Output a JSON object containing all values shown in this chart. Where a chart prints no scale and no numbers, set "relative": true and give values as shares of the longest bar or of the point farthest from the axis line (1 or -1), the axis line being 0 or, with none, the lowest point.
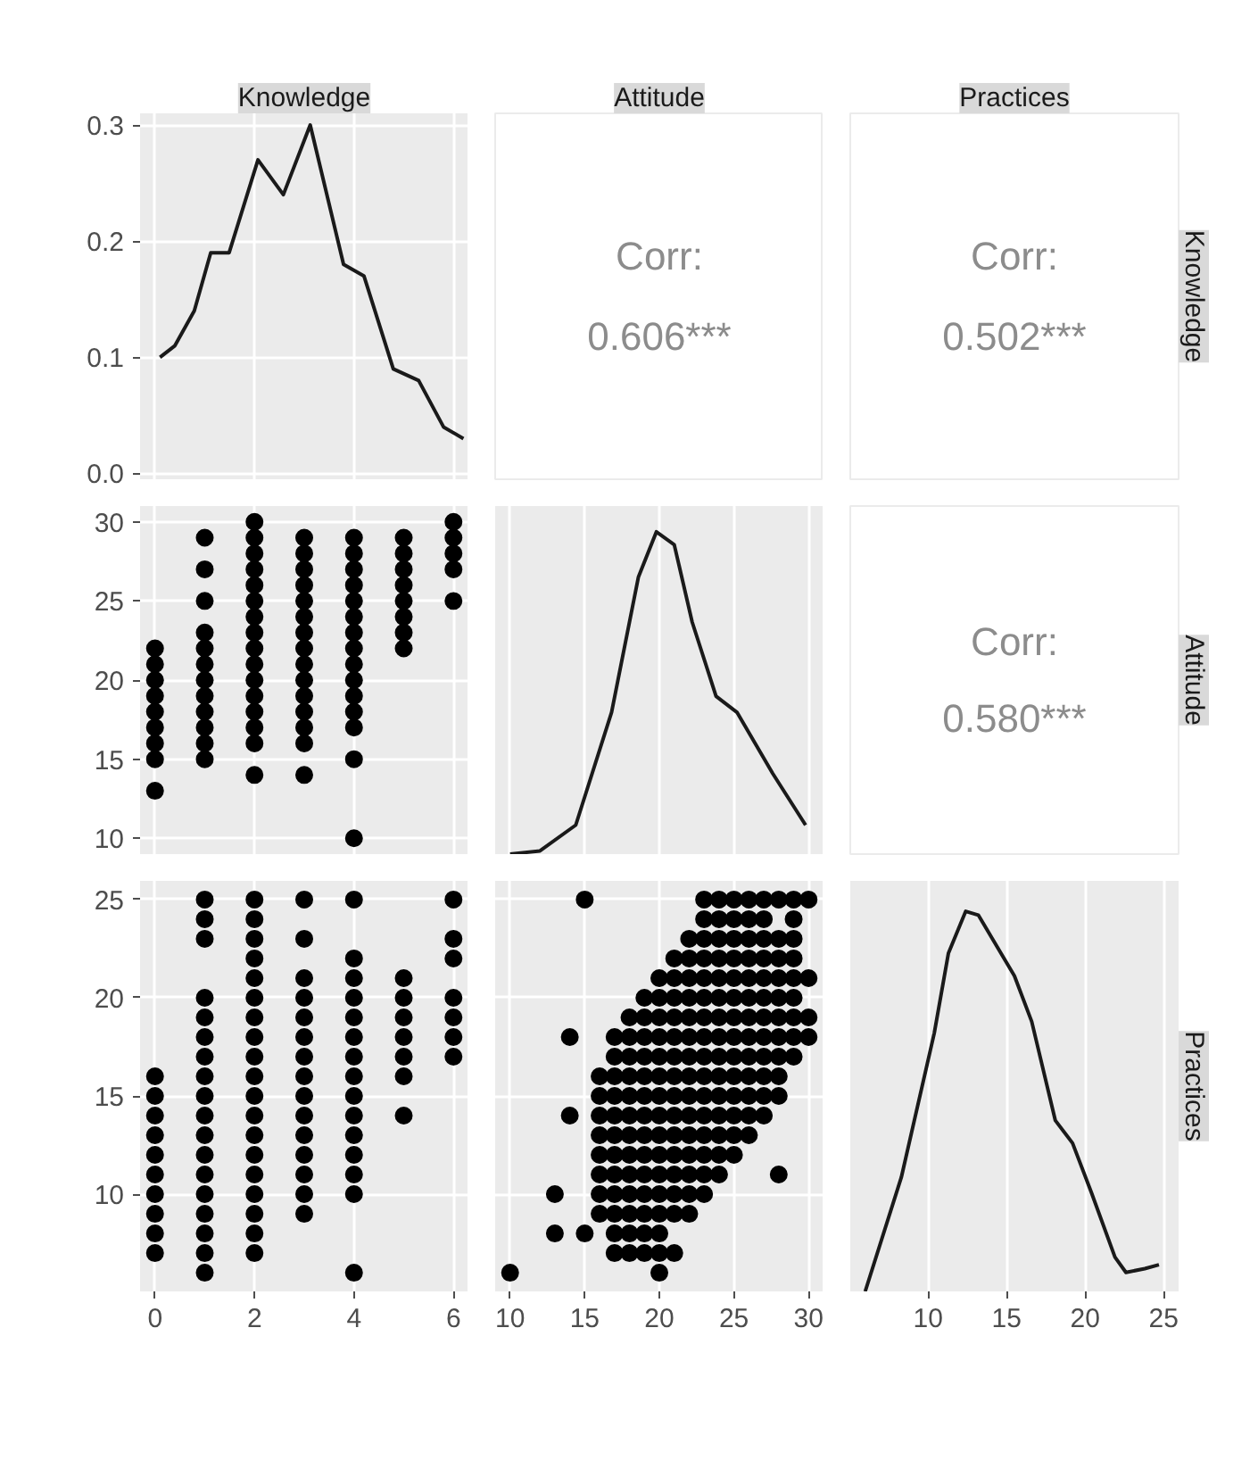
{
  "chart_data": [
    {
      "type": "line",
      "title": "Knowledge",
      "x": [
        0.1,
        0.4,
        0.79,
        1.12,
        1.49,
        2.07,
        2.58,
        3.12,
        3.79,
        4.2,
        4.79,
        5.3,
        5.8,
        6.2
      ],
      "series": [
        {
          "color": "#1a1a1a",
          "values": [
            0.1,
            0.11,
            0.14,
            0.19,
            0.19,
            0.27,
            0.24,
            0.3,
            0.18,
            0.17,
            0.09,
            0.08,
            0.04,
            0.03
          ]
        }
      ],
      "xlim": [
        -0.3,
        6.3
      ],
      "xticks": [
        0,
        2,
        4,
        6
      ],
      "ylim": [
        -0.005,
        0.31
      ],
      "yticks": [
        {
          "value": 0,
          "label": "0.0"
        },
        0.1,
        0.2,
        0.3
      ],
      "grid": true,
      "tick_labels": "y"
    },
    {
      "type": "other",
      "title": "Attitude",
      "annotations": [
        "Corr:",
        "0.606***"
      ]
    },
    {
      "type": "other",
      "title": "Practices",
      "y2label": "Knowledge",
      "annotations": [
        "Corr:",
        "0.502***"
      ]
    },
    {
      "type": "scatter",
      "marker": "circle",
      "color": "#000000",
      "x": [
        0,
        0,
        0,
        0,
        0,
        0,
        0,
        0,
        0,
        1,
        1,
        1,
        1,
        1,
        1,
        1,
        1,
        1,
        1,
        1,
        1,
        2,
        2,
        2,
        2,
        2,
        2,
        2,
        2,
        2,
        2,
        2,
        2,
        2,
        2,
        2,
        2,
        3,
        3,
        3,
        3,
        3,
        3,
        3,
        3,
        3,
        3,
        3,
        3,
        3,
        3,
        3,
        4,
        4,
        4,
        4,
        4,
        4,
        4,
        4,
        4,
        4,
        4,
        4,
        4,
        4,
        4,
        5,
        5,
        5,
        5,
        5,
        5,
        5,
        5,
        6,
        6,
        6,
        6,
        6
      ],
      "values": [
        13,
        15,
        16,
        17,
        18,
        19,
        20,
        21,
        22,
        15,
        16,
        17,
        18,
        19,
        20,
        21,
        22,
        23,
        25,
        27,
        29,
        14,
        16,
        17,
        18,
        19,
        20,
        21,
        22,
        23,
        24,
        25,
        26,
        27,
        28,
        29,
        30,
        14,
        16,
        17,
        18,
        19,
        20,
        21,
        22,
        23,
        24,
        25,
        26,
        27,
        28,
        29,
        10,
        15,
        17,
        18,
        19,
        20,
        21,
        22,
        23,
        24,
        25,
        26,
        27,
        28,
        29,
        22,
        23,
        24,
        25,
        26,
        27,
        28,
        29,
        25,
        27,
        28,
        29,
        30
      ],
      "xlim": [
        -0.3,
        6.3
      ],
      "xticks": [
        0,
        2,
        4,
        6
      ],
      "ylim": [
        9,
        31
      ],
      "yticks": [
        10,
        15,
        20,
        25,
        30
      ],
      "grid": true,
      "tick_labels": "y"
    },
    {
      "type": "line",
      "relative": true,
      "x": [
        10.0,
        12.0,
        14.4,
        16.8,
        18.6,
        19.8,
        21.0,
        22.2,
        23.8,
        25.2,
        27.6,
        29.8
      ],
      "series": [
        {
          "color": "#1a1a1a",
          "values": [
            0,
            0.01,
            0.09,
            0.44,
            0.86,
            1.0,
            0.96,
            0.72,
            0.49,
            0.44,
            0.25,
            0.09
          ]
        }
      ],
      "xlim": [
        9,
        31
      ],
      "xticks": [
        10,
        15,
        20,
        25,
        30
      ],
      "grid": true,
      "tick_labels": false
    },
    {
      "type": "other",
      "y2label": "Attitude",
      "annotations": [
        "Corr:",
        "0.580***"
      ]
    },
    {
      "type": "scatter",
      "marker": "circle",
      "color": "#000000",
      "x": [
        0,
        0,
        0,
        0,
        0,
        0,
        0,
        0,
        0,
        0,
        1,
        1,
        1,
        1,
        1,
        1,
        1,
        1,
        1,
        1,
        1,
        1,
        1,
        1,
        1,
        1,
        1,
        1,
        2,
        2,
        2,
        2,
        2,
        2,
        2,
        2,
        2,
        2,
        2,
        2,
        2,
        2,
        2,
        2,
        2,
        2,
        2,
        3,
        3,
        3,
        3,
        3,
        3,
        3,
        3,
        3,
        3,
        3,
        3,
        3,
        3,
        3,
        4,
        4,
        4,
        4,
        4,
        4,
        4,
        4,
        4,
        4,
        4,
        4,
        4,
        4,
        4,
        5,
        5,
        5,
        5,
        5,
        5,
        5,
        6,
        6,
        6,
        6,
        6,
        6,
        6
      ],
      "values": [
        7,
        8,
        9,
        10,
        11,
        12,
        13,
        14,
        15,
        16,
        6,
        7,
        8,
        9,
        10,
        11,
        12,
        13,
        14,
        15,
        16,
        17,
        18,
        19,
        20,
        23,
        24,
        25,
        7,
        8,
        9,
        10,
        11,
        12,
        13,
        14,
        15,
        16,
        17,
        18,
        19,
        20,
        21,
        22,
        23,
        24,
        25,
        9,
        10,
        11,
        12,
        13,
        14,
        15,
        16,
        17,
        18,
        19,
        20,
        21,
        23,
        25,
        6,
        10,
        11,
        12,
        13,
        14,
        15,
        16,
        17,
        18,
        19,
        20,
        21,
        22,
        25,
        14,
        16,
        17,
        18,
        19,
        20,
        21,
        17,
        18,
        19,
        20,
        22,
        23,
        25
      ],
      "xlim": [
        -0.3,
        6.3
      ],
      "xticks": [
        0,
        2,
        4,
        6
      ],
      "ylim": [
        5.05,
        25.95
      ],
      "yticks": [
        10,
        15,
        20,
        25
      ],
      "grid": true
    },
    {
      "type": "scatter",
      "marker": "circle",
      "color": "#000000",
      "x": [
        10,
        20,
        17,
        18,
        19,
        20,
        21,
        13,
        15,
        17,
        18,
        19,
        20,
        16,
        17,
        18,
        19,
        20,
        21,
        22,
        13,
        16,
        17,
        18,
        19,
        20,
        21,
        22,
        23,
        16,
        17,
        18,
        19,
        20,
        21,
        22,
        23,
        24,
        28,
        16,
        17,
        18,
        19,
        20,
        21,
        22,
        23,
        24,
        25,
        16,
        17,
        18,
        19,
        20,
        21,
        22,
        23,
        24,
        25,
        26,
        14,
        16,
        17,
        18,
        19,
        20,
        21,
        22,
        23,
        24,
        25,
        26,
        27,
        16,
        17,
        18,
        19,
        20,
        21,
        22,
        23,
        24,
        25,
        26,
        27,
        28,
        16,
        17,
        18,
        19,
        20,
        21,
        22,
        23,
        24,
        25,
        26,
        27,
        28,
        17,
        18,
        19,
        20,
        21,
        22,
        23,
        24,
        25,
        26,
        27,
        28,
        29,
        14,
        17,
        18,
        19,
        20,
        21,
        22,
        23,
        24,
        25,
        26,
        27,
        28,
        29,
        30,
        18,
        19,
        20,
        21,
        22,
        23,
        24,
        25,
        26,
        27,
        28,
        29,
        30,
        19,
        20,
        21,
        22,
        23,
        24,
        25,
        26,
        27,
        28,
        29,
        20,
        21,
        22,
        23,
        24,
        25,
        26,
        27,
        28,
        29,
        30,
        21,
        22,
        23,
        24,
        25,
        26,
        27,
        28,
        29,
        22,
        23,
        24,
        25,
        26,
        27,
        28,
        29,
        23,
        24,
        25,
        26,
        27,
        29,
        15,
        23,
        24,
        25,
        26,
        27,
        28,
        29,
        30
      ],
      "values": [
        6,
        6,
        7,
        7,
        7,
        7,
        7,
        8,
        8,
        8,
        8,
        8,
        8,
        9,
        9,
        9,
        9,
        9,
        9,
        9,
        10,
        10,
        10,
        10,
        10,
        10,
        10,
        10,
        10,
        11,
        11,
        11,
        11,
        11,
        11,
        11,
        11,
        11,
        11,
        12,
        12,
        12,
        12,
        12,
        12,
        12,
        12,
        12,
        12,
        13,
        13,
        13,
        13,
        13,
        13,
        13,
        13,
        13,
        13,
        13,
        14,
        14,
        14,
        14,
        14,
        14,
        14,
        14,
        14,
        14,
        14,
        14,
        14,
        15,
        15,
        15,
        15,
        15,
        15,
        15,
        15,
        15,
        15,
        15,
        15,
        15,
        16,
        16,
        16,
        16,
        16,
        16,
        16,
        16,
        16,
        16,
        16,
        16,
        16,
        17,
        17,
        17,
        17,
        17,
        17,
        17,
        17,
        17,
        17,
        17,
        17,
        17,
        18,
        18,
        18,
        18,
        18,
        18,
        18,
        18,
        18,
        18,
        18,
        18,
        18,
        18,
        18,
        19,
        19,
        19,
        19,
        19,
        19,
        19,
        19,
        19,
        19,
        19,
        19,
        19,
        20,
        20,
        20,
        20,
        20,
        20,
        20,
        20,
        20,
        20,
        20,
        21,
        21,
        21,
        21,
        21,
        21,
        21,
        21,
        21,
        21,
        21,
        22,
        22,
        22,
        22,
        22,
        22,
        22,
        22,
        22,
        23,
        23,
        23,
        23,
        23,
        23,
        23,
        23,
        24,
        24,
        24,
        24,
        24,
        24,
        25,
        25,
        25,
        25,
        25,
        25,
        25,
        25,
        25
      ],
      "xlim": [
        9,
        31
      ],
      "xticks": [
        10,
        15,
        20,
        25,
        30
      ],
      "ylim": [
        5.05,
        25.95
      ],
      "yticks": [
        10,
        15,
        20,
        25
      ],
      "grid": true,
      "tick_labels": "x"
    },
    {
      "type": "line",
      "relative": true,
      "y2label": "Practices",
      "x": [
        6.0,
        8.3,
        10.4,
        11.3,
        12.4,
        13.2,
        15.5,
        16.6,
        18.1,
        19.2,
        20.4,
        21.9,
        22.6,
        23.8,
        24.7
      ],
      "series": [
        {
          "color": "#1a1a1a",
          "values": [
            0,
            0.3,
            0.68,
            0.89,
            1.0,
            0.99,
            0.83,
            0.71,
            0.45,
            0.39,
            0.26,
            0.09,
            0.05,
            0.06,
            0.07
          ]
        }
      ],
      "xlim": [
        5.05,
        25.95
      ],
      "xticks": [
        10,
        15,
        20,
        25
      ],
      "grid": true,
      "tick_labels": "x"
    }
  ]
}
